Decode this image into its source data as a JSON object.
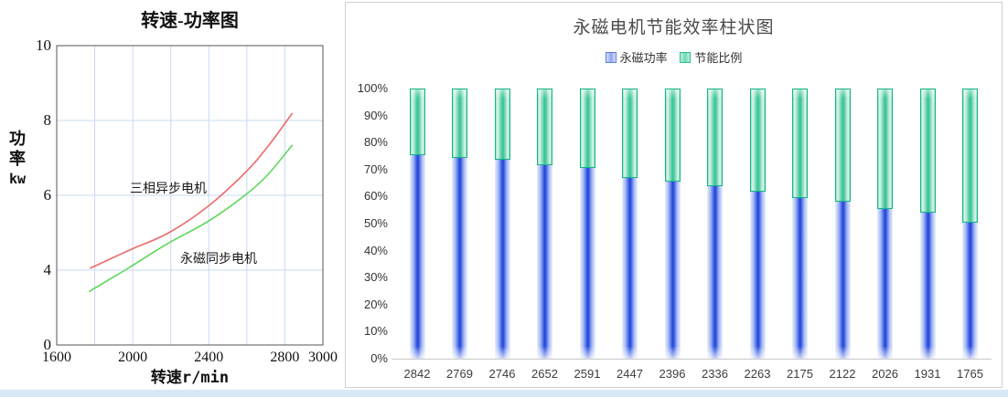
{
  "ui": {
    "background": "#ffffff",
    "bottom_strip_color": "#d9e8f6",
    "panel_border_color": "#cfcfcf",
    "grid_color": "#c9d9f0"
  },
  "chart_data": [
    {
      "type": "line",
      "title": "转速-功率图",
      "xlabel": "转速r/min",
      "ylabel": "功率kw",
      "ylabel_lines": [
        "功",
        "率",
        "kw"
      ],
      "xlim": [
        1600,
        3000
      ],
      "ylim": [
        0,
        10
      ],
      "x_ticks": [
        1600,
        2000,
        2400,
        2800,
        3000
      ],
      "y_ticks": [
        10,
        8,
        6,
        4,
        0
      ],
      "x_grid_values": [
        1800,
        2000,
        2200,
        2400,
        2600,
        2800
      ],
      "y_grid_values": [
        8,
        6,
        4
      ],
      "grid": true,
      "series": [
        {
          "name": "三相异步电机",
          "label": "三相异步电机",
          "color": "#ee6a6a",
          "points": [
            [
              1775,
              4.05
            ],
            [
              1990,
              4.55
            ],
            [
              2190,
              5.0
            ],
            [
              2395,
              5.7
            ],
            [
              2590,
              6.6
            ],
            [
              2710,
              7.3
            ],
            [
              2840,
              8.2
            ]
          ]
        },
        {
          "name": "永磁同步电机",
          "label": "永磁同步电机",
          "color": "#5cd65c",
          "points": [
            [
              1770,
              2.85
            ],
            [
              1975,
              4.05
            ],
            [
              2180,
              4.7
            ],
            [
              2395,
              5.3
            ],
            [
              2590,
              6.0
            ],
            [
              2710,
              6.55
            ],
            [
              2840,
              7.35
            ]
          ]
        }
      ]
    },
    {
      "type": "bar",
      "subtype": "stacked-percent",
      "title": "永磁电机节能效率柱状图",
      "legend_position": "top",
      "grid": false,
      "ylim": [
        0,
        100
      ],
      "y_ticks": [
        "100%",
        "90%",
        "80%",
        "70%",
        "60%",
        "50%",
        "40%",
        "30%",
        "20%",
        "10%",
        "0%"
      ],
      "categories": [
        "2842",
        "2769",
        "2746",
        "2652",
        "2591",
        "2447",
        "2396",
        "2336",
        "2263",
        "2175",
        "2122",
        "2026",
        "1931",
        "1765"
      ],
      "series": [
        {
          "name": "永磁功率",
          "color_center": "#2d52e2",
          "color_edge": "#eaeffc",
          "values": [
            75.5,
            74.5,
            73.5,
            71.5,
            70.5,
            67,
            65.5,
            64,
            62,
            59.5,
            58,
            55.5,
            54,
            50.5
          ]
        },
        {
          "name": "节能比例",
          "color_center": "#3fc79a",
          "border_color": "#14b389",
          "values": [
            24.5,
            25.5,
            26.5,
            28.5,
            29.5,
            33,
            34.5,
            36,
            38,
            40.5,
            42,
            44.5,
            46,
            49.5
          ]
        }
      ]
    }
  ]
}
